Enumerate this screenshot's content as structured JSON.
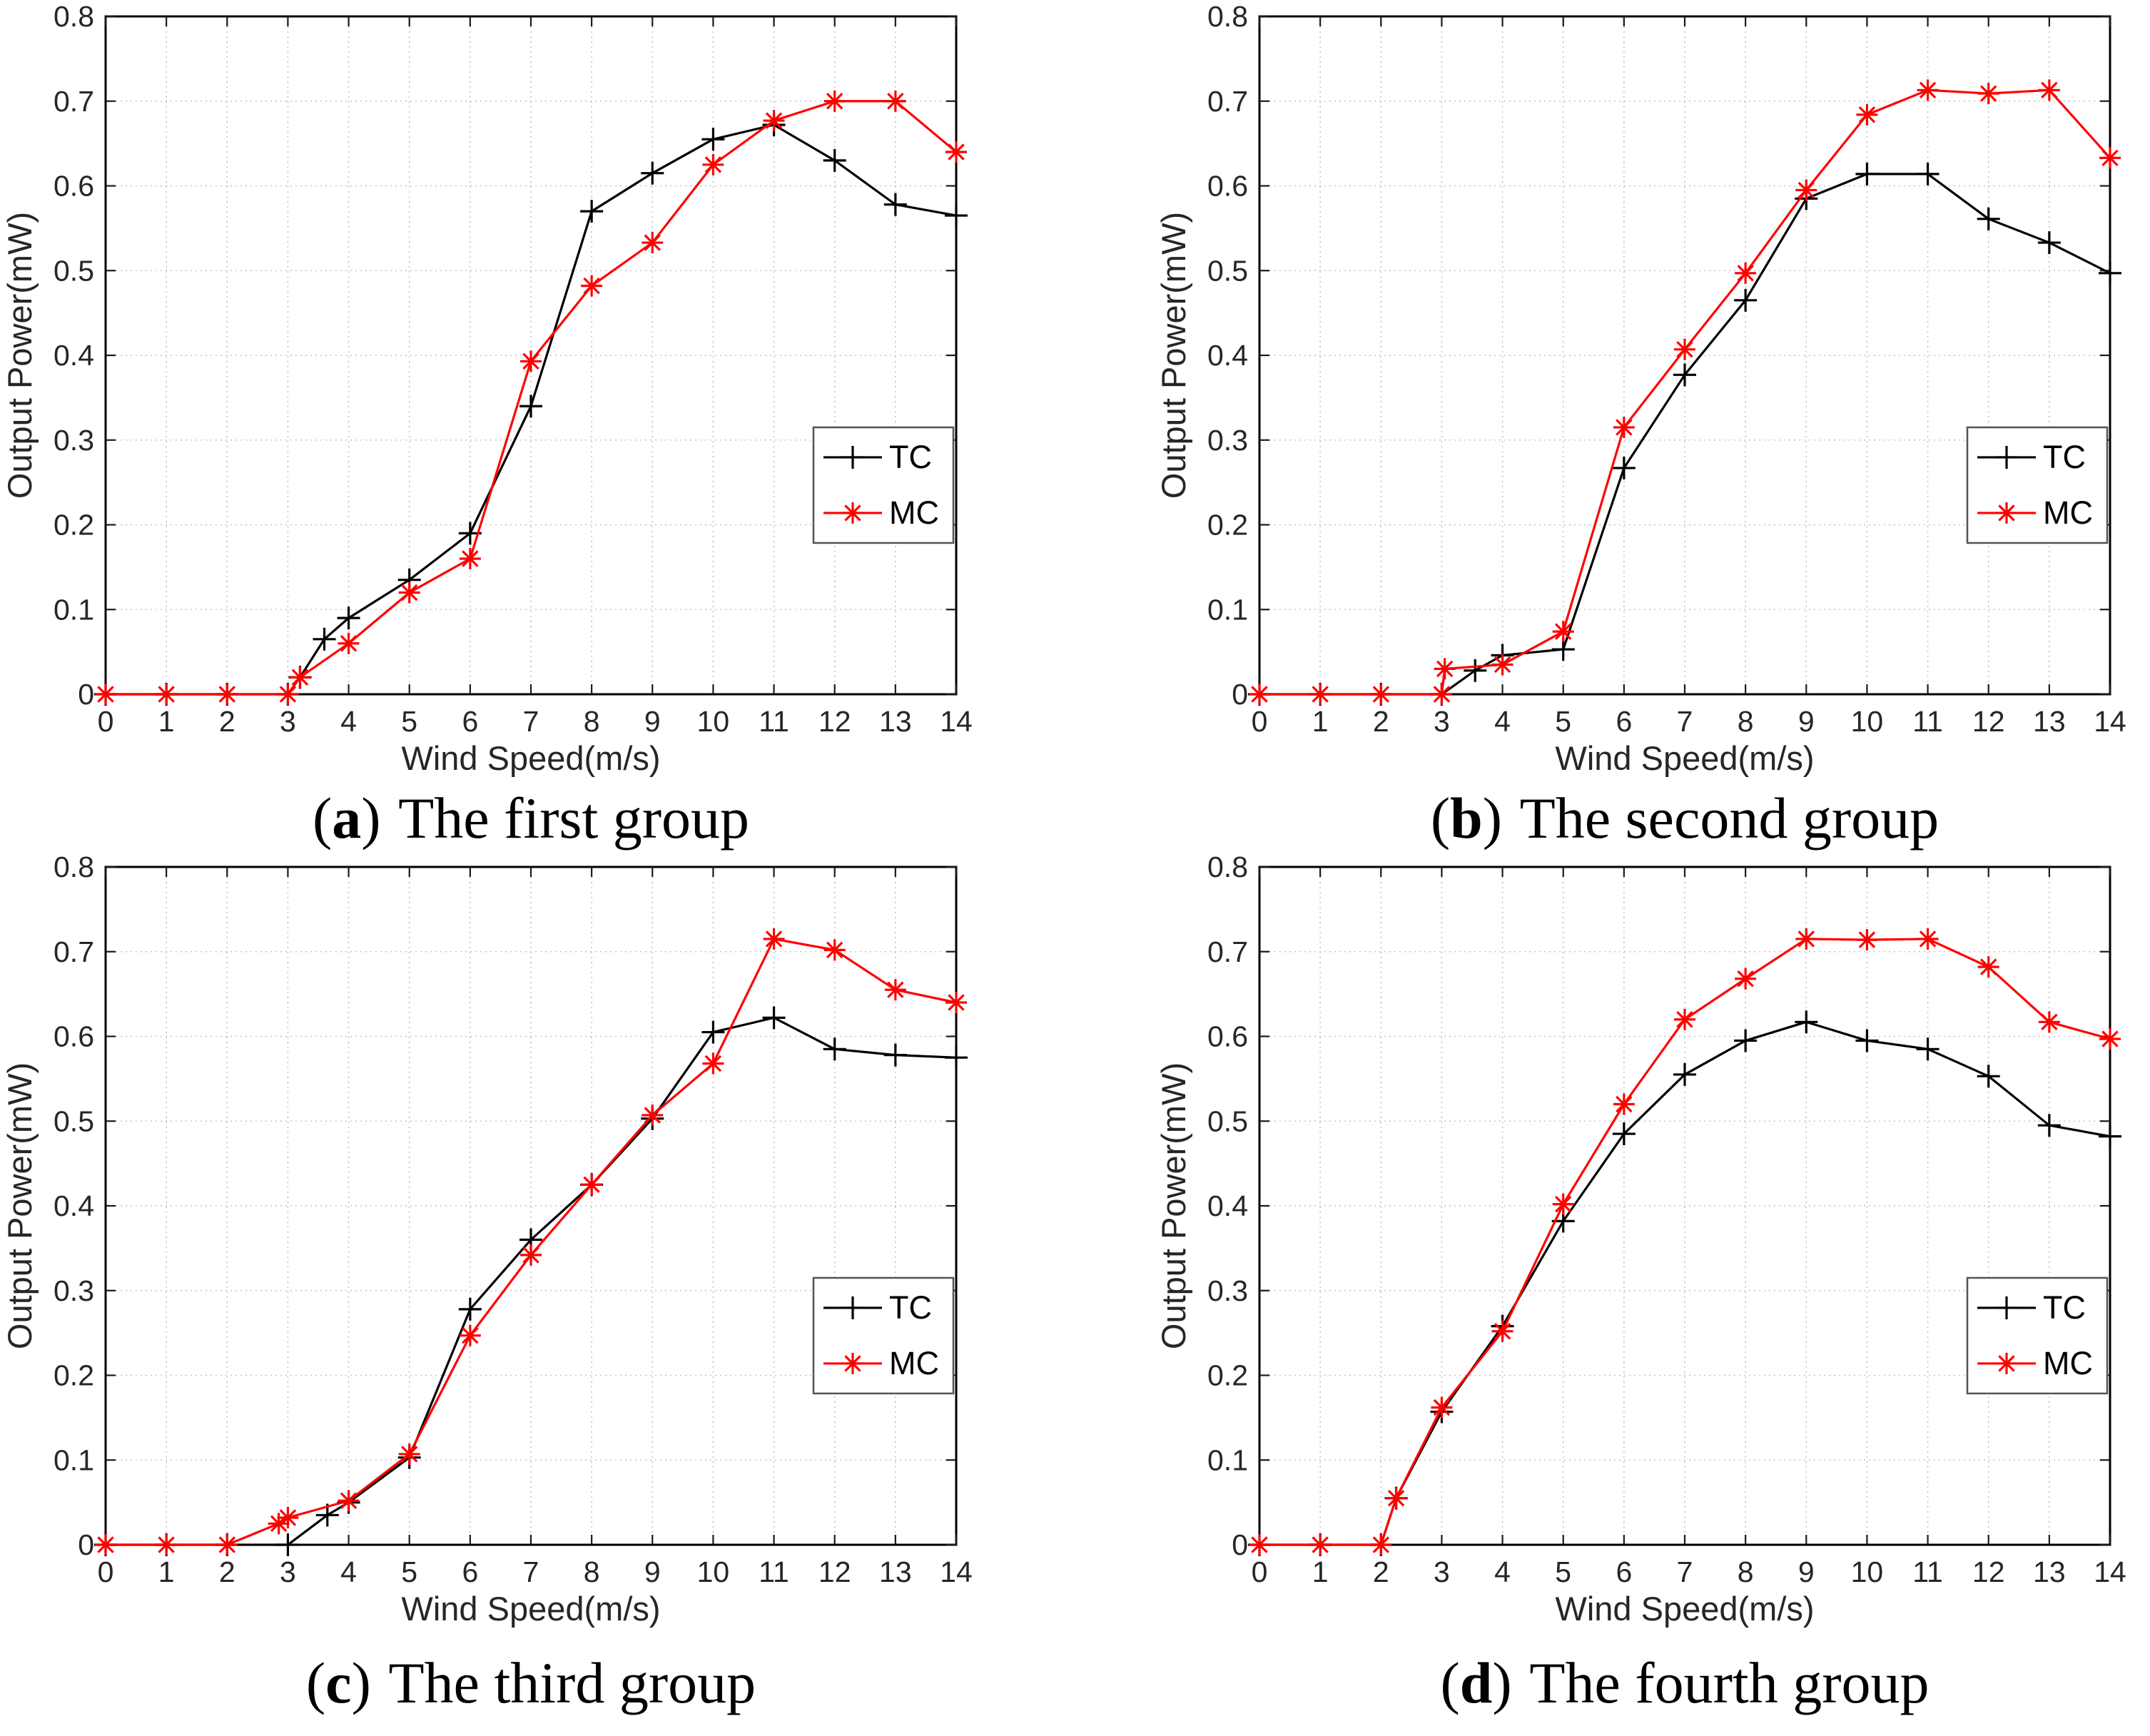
{
  "figure": {
    "background": "#ffffff",
    "caption_paren_open": "(",
    "caption_paren_close": ")"
  },
  "axes_shared": {
    "xlabel": "Wind Speed(m/s)",
    "ylabel": "Output Power(mW)",
    "xlim": [
      0,
      14
    ],
    "ylim": [
      0,
      0.8
    ],
    "x_ticks": [
      0,
      1,
      2,
      3,
      4,
      5,
      6,
      7,
      8,
      9,
      10,
      11,
      12,
      13,
      14
    ],
    "x_tick_labels": [
      "0",
      "1",
      "2",
      "3",
      "4",
      "5",
      "6",
      "7",
      "8",
      "9",
      "10",
      "11",
      "12",
      "13",
      "14"
    ],
    "y_ticks": [
      0,
      0.1,
      0.2,
      0.3,
      0.4,
      0.5,
      0.6,
      0.7,
      0.8
    ],
    "y_tick_labels": [
      "0",
      "0.1",
      "0.2",
      "0.3",
      "0.4",
      "0.5",
      "0.6",
      "0.7",
      "0.8"
    ],
    "grid": "dotted",
    "grid_color": "#c4c4c4",
    "box_color": "#000000",
    "tick_color": "#1a1a1a",
    "text_color": "#262626"
  },
  "legend": {
    "position": "inside-right-middle",
    "border_color": "#545454",
    "fill": "#ffffff",
    "entries": [
      {
        "label": "TC",
        "color": "#000000",
        "marker": "plus"
      },
      {
        "label": "MC",
        "color": "#ff0000",
        "marker": "asterisk"
      }
    ]
  },
  "chart_data": [
    {
      "id": "a",
      "type": "line",
      "caption_letter": "a",
      "caption_text": "The first group",
      "xlabel": "Wind Speed(m/s)",
      "ylabel": "Output Power(mW)",
      "xlim": [
        0,
        14
      ],
      "ylim": [
        0,
        0.8
      ],
      "grid": true,
      "legend": [
        "TC",
        "MC"
      ],
      "legend_position": "right-middle",
      "series": [
        {
          "name": "TC",
          "color": "#000000",
          "marker": "plus",
          "x": [
            0,
            1,
            2,
            3,
            3.2,
            3.6,
            4,
            5,
            6,
            7,
            8,
            9,
            10,
            11,
            12,
            13,
            14
          ],
          "y": [
            0,
            0,
            0,
            0,
            0.02,
            0.065,
            0.09,
            0.135,
            0.19,
            0.34,
            0.57,
            0.615,
            0.655,
            0.672,
            0.63,
            0.578,
            0.565
          ]
        },
        {
          "name": "MC",
          "color": "#ff0000",
          "marker": "asterisk",
          "x": [
            0,
            1,
            2,
            3,
            3.2,
            4,
            5,
            6,
            7,
            8,
            9,
            10,
            11,
            12,
            13,
            14
          ],
          "y": [
            0,
            0,
            0,
            0,
            0.02,
            0.06,
            0.12,
            0.16,
            0.393,
            0.482,
            0.533,
            0.625,
            0.677,
            0.7,
            0.7,
            0.64
          ]
        }
      ]
    },
    {
      "id": "b",
      "type": "line",
      "caption_letter": "b",
      "caption_text": "The second group",
      "xlabel": "Wind Speed(m/s)",
      "ylabel": "Output Power(mW)",
      "xlim": [
        0,
        14
      ],
      "ylim": [
        0,
        0.8
      ],
      "grid": true,
      "legend": [
        "TC",
        "MC"
      ],
      "legend_position": "right-middle",
      "series": [
        {
          "name": "TC",
          "color": "#000000",
          "marker": "plus",
          "x": [
            0,
            1,
            2,
            3,
            3.55,
            4,
            5,
            6,
            7,
            8,
            9,
            10,
            11,
            12,
            13,
            14
          ],
          "y": [
            0,
            0,
            0,
            0,
            0.028,
            0.046,
            0.053,
            0.267,
            0.377,
            0.465,
            0.585,
            0.614,
            0.614,
            0.561,
            0.533,
            0.497
          ]
        },
        {
          "name": "MC",
          "color": "#ff0000",
          "marker": "asterisk",
          "x": [
            0,
            1,
            2,
            3,
            3.05,
            4,
            5,
            6,
            7,
            8,
            9,
            10,
            11,
            12,
            13,
            14
          ],
          "y": [
            0,
            0,
            0,
            0,
            0.03,
            0.035,
            0.074,
            0.315,
            0.407,
            0.497,
            0.595,
            0.684,
            0.713,
            0.709,
            0.713,
            0.633
          ]
        }
      ]
    },
    {
      "id": "c",
      "type": "line",
      "caption_letter": "c",
      "caption_text": "The third group",
      "xlabel": "Wind Speed(m/s)",
      "ylabel": "Output Power(mW)",
      "xlim": [
        0,
        14
      ],
      "ylim": [
        0,
        0.8
      ],
      "grid": true,
      "legend": [
        "TC",
        "MC"
      ],
      "legend_position": "right-middle",
      "series": [
        {
          "name": "TC",
          "color": "#000000",
          "marker": "plus",
          "x": [
            0,
            1,
            2,
            3,
            3.65,
            4,
            5,
            6,
            7,
            8,
            9,
            10,
            11,
            12,
            13,
            14
          ],
          "y": [
            0,
            0,
            0,
            0,
            0.035,
            0.05,
            0.103,
            0.278,
            0.36,
            0.425,
            0.503,
            0.605,
            0.622,
            0.585,
            0.578,
            0.575
          ]
        },
        {
          "name": "MC",
          "color": "#ff0000",
          "marker": "asterisk",
          "x": [
            0,
            1,
            2,
            2.85,
            3,
            4,
            5,
            6,
            7,
            8,
            9,
            10,
            11,
            12,
            13,
            14
          ],
          "y": [
            0,
            0,
            0,
            0.025,
            0.032,
            0.052,
            0.107,
            0.247,
            0.342,
            0.425,
            0.507,
            0.568,
            0.715,
            0.702,
            0.655,
            0.64
          ]
        }
      ]
    },
    {
      "id": "d",
      "type": "line",
      "caption_letter": "d",
      "caption_text": "The fourth group",
      "xlabel": "Wind Speed(m/s)",
      "ylabel": "Output Power(mW)",
      "xlim": [
        0,
        14
      ],
      "ylim": [
        0,
        0.8
      ],
      "grid": true,
      "legend": [
        "TC",
        "MC"
      ],
      "legend_position": "right-middle",
      "series": [
        {
          "name": "TC",
          "color": "#000000",
          "marker": "plus",
          "x": [
            0,
            1,
            2,
            2.25,
            3,
            4,
            5,
            6,
            7,
            8,
            9,
            10,
            11,
            12,
            13,
            14
          ],
          "y": [
            0,
            0,
            0,
            0.055,
            0.157,
            0.258,
            0.382,
            0.485,
            0.555,
            0.595,
            0.617,
            0.595,
            0.585,
            0.553,
            0.495,
            0.482
          ]
        },
        {
          "name": "MC",
          "color": "#ff0000",
          "marker": "asterisk",
          "x": [
            0,
            1,
            2,
            2.25,
            3,
            4,
            5,
            6,
            7,
            8,
            9,
            10,
            11,
            12,
            13,
            14
          ],
          "y": [
            0,
            0,
            0,
            0.055,
            0.162,
            0.252,
            0.402,
            0.52,
            0.62,
            0.668,
            0.715,
            0.714,
            0.715,
            0.682,
            0.617,
            0.597
          ]
        }
      ]
    }
  ]
}
